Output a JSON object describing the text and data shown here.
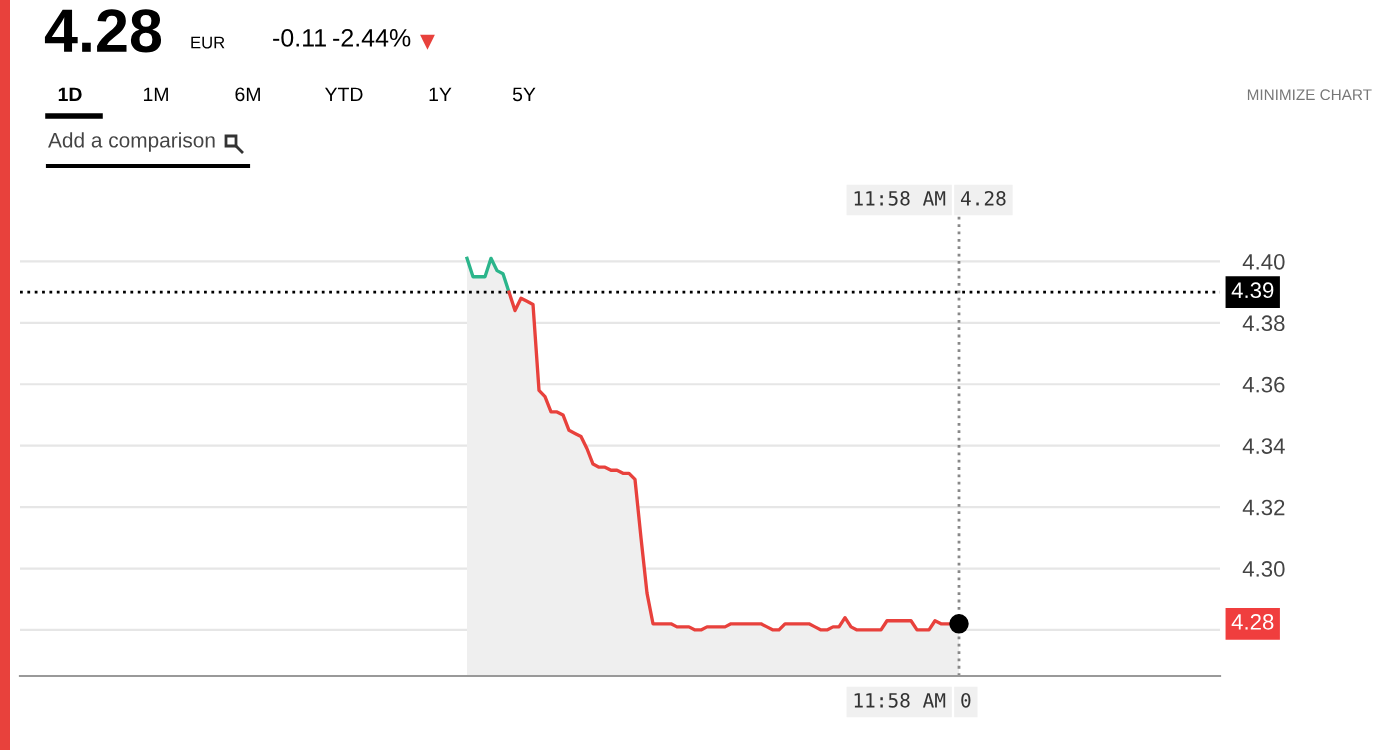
{
  "chart_data": {
    "type": "area",
    "categories": [
      null,
      null,
      null,
      null,
      null,
      null,
      null,
      null,
      null,
      null,
      null,
      null,
      null,
      null,
      null,
      null,
      null,
      null,
      null,
      null,
      null,
      null,
      null,
      null,
      null,
      null,
      null,
      null,
      null,
      null,
      null,
      null,
      null,
      null,
      null,
      null,
      null,
      null,
      null,
      null,
      null,
      null,
      null,
      null,
      null,
      null,
      null,
      null,
      null,
      null,
      null,
      null,
      null,
      null,
      null,
      null,
      null,
      null,
      null,
      null,
      null,
      null,
      null,
      null,
      null,
      null,
      null,
      null,
      null,
      null,
      null,
      null,
      null,
      null,
      null,
      null,
      null,
      null,
      null,
      null,
      null,
      null,
      null,
      null,
      null,
      null,
      null,
      null,
      null,
      null,
      null,
      null,
      null,
      null,
      null,
      null,
      null,
      null,
      null,
      null,
      null,
      null,
      null,
      null,
      null,
      null,
      null,
      null,
      null,
      null,
      null,
      null,
      null,
      null,
      null,
      null,
      null,
      null,
      null,
      null,
      null,
      null,
      null,
      null,
      null,
      null,
      null,
      null,
      null,
      null,
      null,
      null,
      null,
      null,
      null,
      null,
      null,
      null,
      null,
      null,
      null,
      null,
      null,
      null,
      null,
      null,
      null,
      null,
      null,
      null,
      null,
      null,
      null,
      null,
      null,
      null,
      null,
      null,
      null,
      null,
      null,
      null,
      null,
      null,
      null,
      null,
      null,
      null,
      null,
      null,
      null,
      null,
      null,
      null,
      null,
      null,
      null,
      null,
      null,
      null,
      null,
      null,
      null,
      null,
      null,
      null,
      null,
      null,
      null,
      null,
      null,
      null,
      null,
      null,
      null,
      null,
      null,
      null,
      null,
      null
    ],
    "series": [
      {
        "color": "#2bb58b",
        "values": [
          null,
          null,
          null,
          null,
          null,
          null,
          null,
          null,
          null,
          null,
          null,
          null,
          null,
          null,
          null,
          null,
          null,
          null,
          null,
          null,
          null,
          null,
          null,
          null,
          null,
          null,
          null,
          null,
          null,
          null,
          null,
          null,
          null,
          null,
          null,
          null,
          null,
          null,
          null,
          null,
          null,
          null,
          null,
          null,
          null,
          null,
          null,
          null,
          null,
          null,
          null,
          null,
          null,
          null,
          null,
          null,
          null,
          null,
          null,
          null,
          null,
          null,
          null,
          null,
          null,
          null,
          null,
          null,
          null,
          null,
          null,
          null,
          null,
          null,
          4.401,
          4.395,
          4.395,
          4.395,
          4.401,
          4.397,
          4.396,
          4.39,
          null,
          null,
          null,
          null,
          null,
          null,
          null,
          null,
          null,
          null,
          null,
          null,
          null,
          null,
          null,
          null,
          null,
          null,
          null,
          null,
          null,
          null,
          null,
          null,
          null,
          null,
          null,
          null,
          null,
          null,
          null,
          null,
          null,
          null,
          null,
          null,
          null,
          null,
          null,
          null,
          null,
          null,
          null,
          null,
          null,
          null,
          null,
          null,
          null,
          null,
          null,
          null,
          null,
          null,
          null,
          null,
          null,
          null,
          null,
          null,
          null,
          null,
          null,
          null,
          null,
          null,
          null,
          null,
          null,
          null,
          null,
          null,
          null,
          null,
          null,
          null,
          null,
          null,
          null,
          null,
          null,
          null,
          null,
          null,
          null,
          null,
          null,
          null,
          null,
          null,
          null,
          null,
          null,
          null,
          null,
          null,
          null,
          null,
          null,
          null,
          null,
          null,
          null,
          null,
          null,
          null,
          null,
          null,
          null,
          null,
          null,
          null,
          null,
          null,
          null,
          null,
          null,
          null
        ]
      },
      {
        "color": "#e8413c",
        "values": [
          null,
          null,
          null,
          null,
          null,
          null,
          null,
          null,
          null,
          null,
          null,
          null,
          null,
          null,
          null,
          null,
          null,
          null,
          null,
          null,
          null,
          null,
          null,
          null,
          null,
          null,
          null,
          null,
          null,
          null,
          null,
          null,
          null,
          null,
          null,
          null,
          null,
          null,
          null,
          null,
          null,
          null,
          null,
          null,
          null,
          null,
          null,
          null,
          null,
          null,
          null,
          null,
          null,
          null,
          null,
          null,
          null,
          null,
          null,
          null,
          null,
          null,
          null,
          null,
          null,
          null,
          null,
          null,
          null,
          null,
          null,
          null,
          null,
          null,
          null,
          null,
          null,
          null,
          null,
          null,
          null,
          4.39,
          4.384,
          4.388,
          4.387,
          4.386,
          4.358,
          4.356,
          4.351,
          4.351,
          4.35,
          4.345,
          4.344,
          4.343,
          4.339,
          4.334,
          4.333,
          4.333,
          4.332,
          4.332,
          4.331,
          4.331,
          4.329,
          4.31,
          4.292,
          4.282,
          4.282,
          4.282,
          4.282,
          4.281,
          4.281,
          4.281,
          4.28,
          4.28,
          4.281,
          4.281,
          4.281,
          4.281,
          4.282,
          4.282,
          4.282,
          4.282,
          4.282,
          4.282,
          4.281,
          4.28,
          4.28,
          4.282,
          4.282,
          4.282,
          4.282,
          4.282,
          4.281,
          4.28,
          4.28,
          4.281,
          4.281,
          4.284,
          4.281,
          4.28,
          4.28,
          4.28,
          4.28,
          4.28,
          4.283,
          4.283,
          4.283,
          4.283,
          4.283,
          4.28,
          4.28,
          4.28,
          4.283,
          4.282,
          4.282,
          4.282,
          4.282,
          null,
          null,
          null,
          null,
          null,
          null,
          null,
          null,
          null,
          null,
          null,
          null,
          null,
          null,
          null,
          null,
          null,
          null,
          null,
          null,
          null,
          null,
          null,
          null,
          null,
          null,
          null,
          null,
          null,
          null,
          null,
          null,
          null,
          null,
          null,
          null,
          null,
          null,
          null,
          null,
          null,
          null,
          null
        ]
      }
    ],
    "ylim": [
      4.265,
      4.42
    ],
    "yticks": [
      {
        "value": 4.28,
        "label": null
      },
      {
        "value": 4.3,
        "label": "4.30"
      },
      {
        "value": 4.32,
        "label": "4.32"
      },
      {
        "value": 4.34,
        "label": "4.34"
      },
      {
        "value": 4.36,
        "label": "4.36"
      },
      {
        "value": 4.38,
        "label": "4.38"
      },
      {
        "value": 4.4,
        "label": "4.40"
      }
    ],
    "grid": "y",
    "tick_labels": "y",
    "line_style": "solid",
    "ref_lines": [
      {
        "axis": "y",
        "value": 4.39,
        "label": "4.39",
        "color": "#000000",
        "line_style": "dotted"
      }
    ],
    "annotations": [
      "4.28",
      "EUR",
      "-0.11",
      "-2.44%",
      "▼",
      "1D",
      "1M",
      "6M",
      "YTD",
      "1Y",
      "5Y",
      "MINIMIZE CHART",
      "Add a comparison",
      "11:58 AM",
      "4.28",
      "11:58 AM",
      "0",
      "4.28"
    ]
  }
}
